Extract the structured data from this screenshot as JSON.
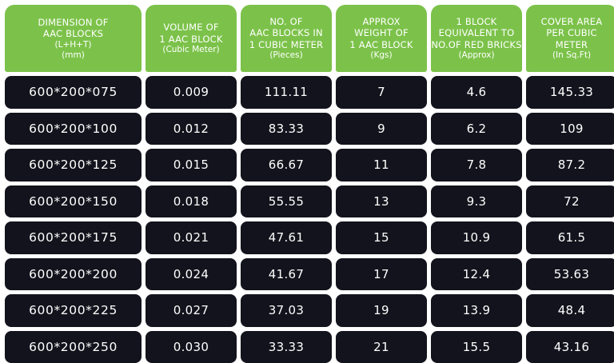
{
  "table": {
    "headers": [
      {
        "lines": [
          "DIMENSION OF",
          "AAC BLOCKS"
        ],
        "sub": [
          "(L+H+T)",
          "(mm)"
        ]
      },
      {
        "lines": [
          "VOLUME OF",
          "1 AAC BLOCK"
        ],
        "sub": [
          "(Cubic Meter)"
        ]
      },
      {
        "lines": [
          "NO. OF",
          "AAC BLOCKS IN",
          "1 CUBIC METER"
        ],
        "sub": [
          "(Pieces)"
        ]
      },
      {
        "lines": [
          "APPROX",
          "WEIGHT OF",
          "1 AAC BLOCK"
        ],
        "sub": [
          "(Kgs)"
        ]
      },
      {
        "lines": [
          "1 BLOCK",
          "EQUIVALENT TO",
          "NO.OF RED BRICKS"
        ],
        "sub": [
          "(Approx)"
        ]
      },
      {
        "lines": [
          "COVER AREA",
          "PER CUBIC",
          "METER"
        ],
        "sub": [
          "(In Sq.Ft)"
        ]
      }
    ],
    "rows": [
      [
        "600*200*075",
        "0.009",
        "111.11",
        "7",
        "4.6",
        "145.33"
      ],
      [
        "600*200*100",
        "0.012",
        "83.33",
        "9",
        "6.2",
        "109"
      ],
      [
        "600*200*125",
        "0.015",
        "66.67",
        "11",
        "7.8",
        "87.2"
      ],
      [
        "600*200*150",
        "0.018",
        "55.55",
        "13",
        "9.3",
        "72"
      ],
      [
        "600*200*175",
        "0.021",
        "47.61",
        "15",
        "10.9",
        "61.5"
      ],
      [
        "600*200*200",
        "0.024",
        "41.67",
        "17",
        "12.4",
        "53.63"
      ],
      [
        "600*200*225",
        "0.027",
        "37.03",
        "19",
        "13.9",
        "48.4"
      ],
      [
        "600*200*250",
        "0.030",
        "33.33",
        "21",
        "15.5",
        "43.16"
      ]
    ],
    "colors": {
      "header_bg": "#7cc24a",
      "cell_bg": "#12131c",
      "text": "#ffffff"
    }
  }
}
